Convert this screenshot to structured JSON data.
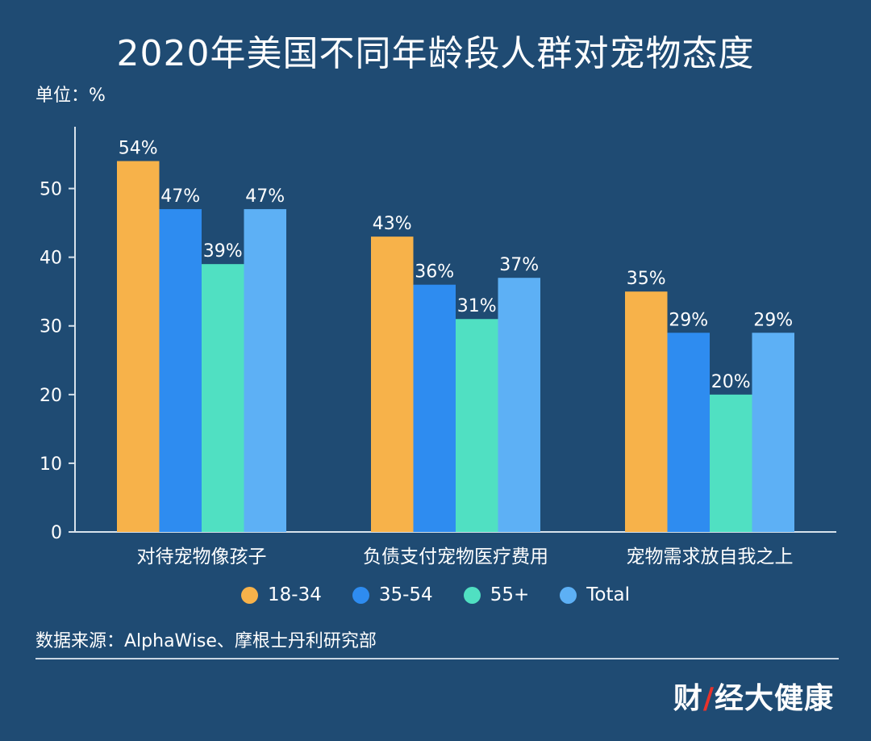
{
  "title": "2020年美国不同年龄段人群对宠物态度",
  "unit_label": "单位：%",
  "source": "数据来源：AlphaWise、摩根士丹利研究部",
  "brand": {
    "part1": "财",
    "slash": "/",
    "part2": "经大健康"
  },
  "chart_data": {
    "type": "bar",
    "title": "2020年美国不同年龄段人群对宠物态度",
    "xlabel": "",
    "ylabel": "单位：%",
    "ylim": [
      0,
      59
    ],
    "yticks": [
      0,
      10,
      20,
      30,
      40,
      50
    ],
    "categories": [
      "对待宠物像孩子",
      "负债支付宠物医疗费用",
      "宠物需求放自我之上"
    ],
    "series": [
      {
        "name": "18-34",
        "color": "#f7b24a",
        "values": [
          54,
          43,
          35
        ],
        "labels": [
          "54%",
          "43%",
          "35%"
        ]
      },
      {
        "name": "35-54",
        "color": "#2e8cf0",
        "values": [
          47,
          36,
          29
        ],
        "labels": [
          "47%",
          "36%",
          "29%"
        ]
      },
      {
        "name": "55+",
        "color": "#50e0c2",
        "values": [
          39,
          31,
          20
        ],
        "labels": [
          "39%",
          "31%",
          "20%"
        ]
      },
      {
        "name": "Total",
        "color": "#5db0f5",
        "values": [
          47,
          37,
          29
        ],
        "labels": [
          "47%",
          "37%",
          "29%"
        ]
      }
    ],
    "legend_position": "bottom"
  }
}
